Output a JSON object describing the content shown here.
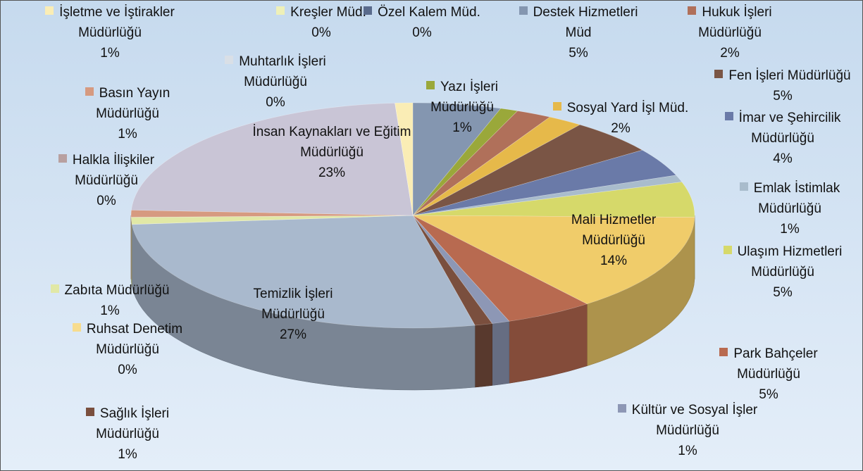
{
  "chart_data": {
    "type": "pie",
    "style": "3d",
    "categories": [
      "Özel Kalem Müd.",
      "Destek Hizmetleri Müd",
      "Yazı İşleri Müdürlüğü",
      "Hukuk İşleri Müdürlüğü",
      "Sosyal Yard İşl Müd.",
      "Fen İşleri Müdürlüğü",
      "İmar ve Şehircilik Müdürlüğü",
      "Emlak İstimlak Müdürlüğü",
      "Ulaşım Hizmetleri Müdürlüğü",
      "Mali Hizmetler Müdürlüğü",
      "Park Bahçeler Müdürlüğü",
      "Kültür ve Sosyal İşler Müdürlüğü",
      "Sağlık İşleri Müdürlüğü",
      "Temizlik İşleri Müdürlüğü",
      "Ruhsat Denetim Müdürlüğü",
      "Zabıta Müdürlüğü",
      "Halkla  İlişkiler Müdürlüğü",
      "Basın Yayın Müdürlüğü",
      "İnsan Kaynakları ve Eğitim Müdürlüğü",
      "Muhtarlık İşleri Müdürlüğü",
      "Kreşler Müd.",
      "İşletme ve İştirakler Müdürlüğü"
    ],
    "values": [
      0,
      5,
      1,
      2,
      2,
      5,
      4,
      1,
      5,
      14,
      5,
      1,
      1,
      27,
      0,
      1,
      0,
      1,
      23,
      0,
      0,
      1
    ],
    "value_labels": [
      "0%",
      "5%",
      "1%",
      "2%",
      "2%",
      "5%",
      "4%",
      "1%",
      "5%",
      "14%",
      "5%",
      "1%",
      "1%",
      "27%",
      "0%",
      "1%",
      "0%",
      "1%",
      "23%",
      "0%",
      "0%",
      "1%"
    ],
    "colors": [
      "#5a6b8c",
      "#8496b0",
      "#9aa83a",
      "#b0705a",
      "#e6b94a",
      "#7a5545",
      "#6a7aa8",
      "#a9bccc",
      "#d6d96a",
      "#f0cc6a",
      "#b86a50",
      "#8d97b5",
      "#7a4f3e",
      "#a9b9cd",
      "#f7dc8e",
      "#e1e8a6",
      "#b8a0a0",
      "#d69a80",
      "#c9c5d6",
      "#d9dfe6",
      "#eef0b8",
      "#faedb5"
    ]
  }
}
